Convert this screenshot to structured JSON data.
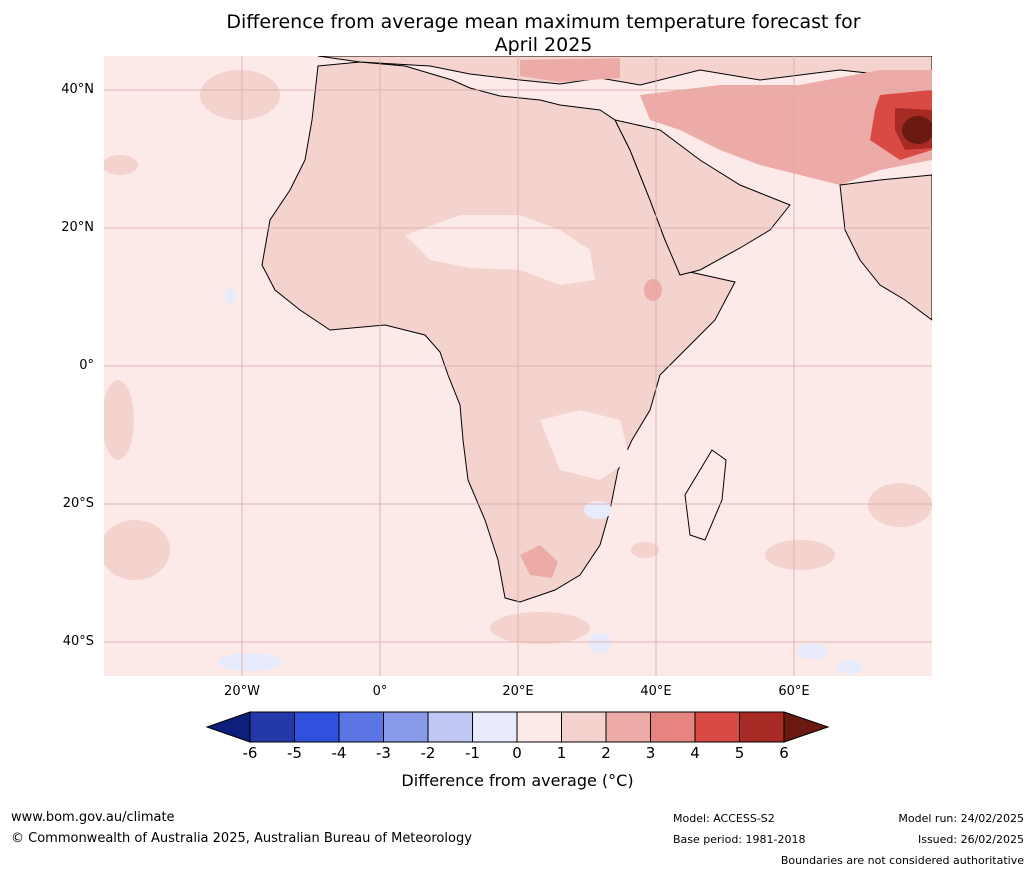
{
  "title": {
    "line1": "Difference from average mean maximum temperature forecast for",
    "line2": "April 2025"
  },
  "map": {
    "lat_labels": [
      "40°N",
      "20°N",
      "0°",
      "20°S",
      "40°S"
    ],
    "lon_labels": [
      "20°W",
      "0°",
      "20°E",
      "40°E",
      "60°E"
    ]
  },
  "colorbar": {
    "ticks": [
      "-6",
      "-5",
      "-4",
      "-3",
      "-2",
      "-1",
      "0",
      "1",
      "2",
      "3",
      "4",
      "5",
      "6"
    ],
    "colors": [
      "#0d1f7a",
      "#2439a8",
      "#3050de",
      "#5b76e4",
      "#8899e8",
      "#c0c7f2",
      "#e8ebfb",
      "#fbeae8",
      "#f4d2ce",
      "#ecaba7",
      "#e58480",
      "#d84a43",
      "#a82a24",
      "#6b1a12"
    ],
    "label": "Difference from average (°C)"
  },
  "footer": {
    "url": "www.bom.gov.au/climate",
    "copyright": "© Commonwealth of Australia 2025, Australian Bureau of Meteorology",
    "model": "Model: ACCESS-S2",
    "base_period": "Base period: 1981-2018",
    "model_run": "Model run: 24/02/2025",
    "issued": "Issued: 26/02/2025",
    "disclaimer": "Boundaries are not considered authoritative"
  }
}
